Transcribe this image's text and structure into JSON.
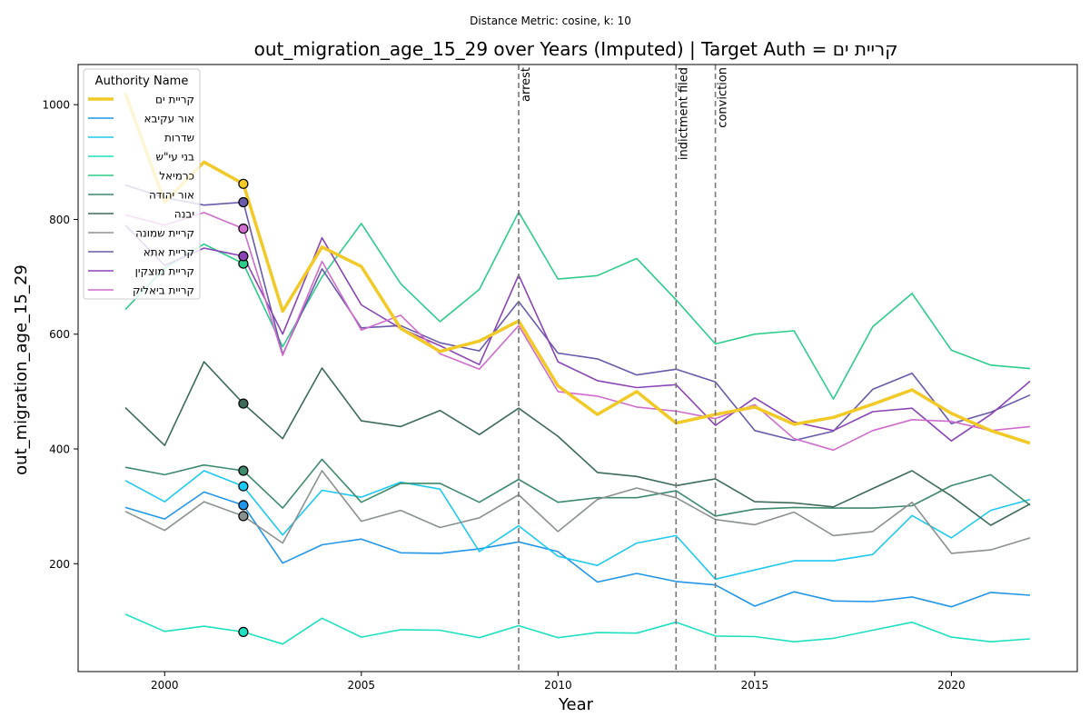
{
  "chart_data": {
    "type": "line",
    "suptitle": "Distance Metric: cosine, k: 10",
    "title": "out_migration_age_15_29 over Years (Imputed) | Target Auth = קריית ים",
    "xlabel": "Year",
    "ylabel": "out_migration_age_15_29",
    "xlim": [
      1997.8,
      2023.2
    ],
    "ylim": [
      12,
      1070
    ],
    "xticks": [
      2000,
      2005,
      2010,
      2015,
      2020
    ],
    "yticks": [
      200,
      400,
      600,
      800,
      1000
    ],
    "grid": false,
    "legend": {
      "title": "Authority Name",
      "placement": "top-left"
    },
    "events": [
      {
        "label": "arrest",
        "x": 2009
      },
      {
        "label": "indictment filed",
        "x": 2013
      },
      {
        "label": "conviction",
        "x": 2014
      }
    ],
    "imputed_year": 2002,
    "x": [
      1999,
      2000,
      2001,
      2002,
      2003,
      2004,
      2005,
      2006,
      2007,
      2008,
      2009,
      2010,
      2011,
      2012,
      2013,
      2014,
      2015,
      2016,
      2017,
      2018,
      2019,
      2020,
      2021,
      2022
    ],
    "series": [
      {
        "name": "קריית ים",
        "color": "#f2ca27",
        "target": true,
        "values": [
          1020,
          830,
          900,
          862,
          640,
          752,
          718,
          610,
          570,
          588,
          623,
          510,
          460,
          500,
          445,
          460,
          473,
          443,
          455,
          478,
          503,
          462,
          432,
          410
        ]
      },
      {
        "name": "אור עקיבא",
        "color": "#2196e8",
        "values": [
          298,
          278,
          325,
          302,
          201,
          233,
          243,
          219,
          218,
          226,
          238,
          221,
          168,
          183,
          169,
          163,
          126,
          151,
          135,
          134,
          142,
          125,
          150,
          145
        ]
      },
      {
        "name": "שדרות",
        "color": "#1ec8f0",
        "values": [
          345,
          308,
          362,
          335,
          250,
          328,
          316,
          342,
          330,
          221,
          266,
          213,
          197,
          236,
          249,
          173,
          189,
          205,
          205,
          216,
          284,
          245,
          293,
          312
        ]
      },
      {
        "name": "בני עי\"ש",
        "color": "#1ee0c0",
        "values": [
          112,
          82,
          91,
          81,
          60,
          105,
          72,
          85,
          84,
          71,
          92,
          71,
          80,
          79,
          98,
          74,
          73,
          64,
          70,
          84,
          98,
          72,
          64,
          69
        ]
      },
      {
        "name": "כרמיאל",
        "color": "#2ecc8a",
        "values": [
          643,
          715,
          757,
          723,
          578,
          700,
          793,
          688,
          622,
          678,
          813,
          696,
          702,
          732,
          660,
          583,
          600,
          606,
          487,
          613,
          671,
          572,
          546,
          540
        ]
      },
      {
        "name": "אור יהודה",
        "color": "#3e8a6c",
        "values": [
          368,
          355,
          372,
          362,
          297,
          382,
          307,
          340,
          340,
          307,
          347,
          307,
          315,
          315,
          327,
          283,
          295,
          298,
          297,
          297,
          301,
          336,
          355,
          302
        ]
      },
      {
        "name": "יבנה",
        "color": "#3d6b58",
        "values": [
          472,
          406,
          552,
          479,
          418,
          541,
          449,
          439,
          467,
          425,
          471,
          422,
          359,
          352,
          336,
          348,
          308,
          306,
          299,
          331,
          362,
          318,
          267,
          304
        ]
      },
      {
        "name": "קריית שמונה",
        "color": "#8a9090",
        "values": [
          291,
          258,
          308,
          283,
          236,
          362,
          274,
          293,
          263,
          280,
          320,
          256,
          312,
          332,
          315,
          277,
          268,
          290,
          249,
          256,
          307,
          218,
          224,
          245
        ]
      },
      {
        "name": "קריית אתא",
        "color": "#6a5aaa",
        "values": [
          860,
          838,
          825,
          830,
          565,
          714,
          611,
          615,
          585,
          571,
          657,
          567,
          557,
          529,
          539,
          517,
          432,
          415,
          431,
          504,
          532,
          444,
          464,
          494
        ]
      },
      {
        "name": "קריית מוצקין",
        "color": "#8a45b5",
        "values": [
          790,
          720,
          750,
          736,
          600,
          768,
          651,
          610,
          580,
          547,
          703,
          552,
          519,
          507,
          512,
          441,
          489,
          447,
          432,
          465,
          471,
          414,
          460,
          518
        ]
      },
      {
        "name": "קריית ביאליק",
        "color": "#cf6ccc",
        "values": [
          808,
          790,
          812,
          784,
          563,
          727,
          607,
          633,
          566,
          539,
          615,
          500,
          492,
          473,
          466,
          453,
          477,
          418,
          398,
          432,
          451,
          448,
          432,
          439
        ]
      }
    ]
  }
}
